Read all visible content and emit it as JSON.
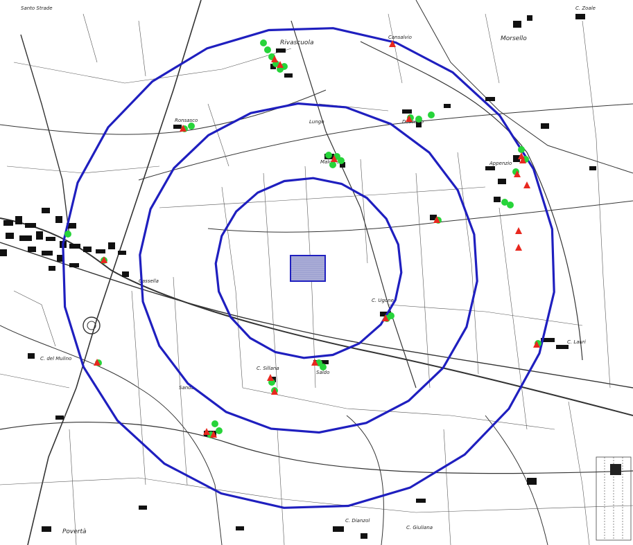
{
  "map": {
    "labels": {
      "rivascuola": "Rivascuola",
      "cansalvio": "Cansalvio",
      "morsello": "Morsello",
      "santo_strade": "Santo Strade",
      "c_zoale": "C. Zoale",
      "apprenzio": "Appenzio",
      "malcarro": "Malcaro",
      "lungo": "Lungo",
      "ronsasco": "Ronsasco",
      "cassella": "Cassella",
      "case_sparse": "C. del Mulino",
      "dossetto": "Dossetto",
      "saldo": "Saldo",
      "c_sillana": "C. Sillana",
      "sanda": "Sanda",
      "c_lauri": "C. Lauri",
      "poverta": "Povertà",
      "c_giuliana": "C. Giuliana",
      "c_ugone": "C. Ugone",
      "c_dianzol": "C. Dianzol"
    },
    "colors": {
      "ring": "#1f1fbf",
      "site_fill": "#a9acd6",
      "receptor_green": "#27d43a",
      "receptor_red": "#e8281f"
    }
  }
}
